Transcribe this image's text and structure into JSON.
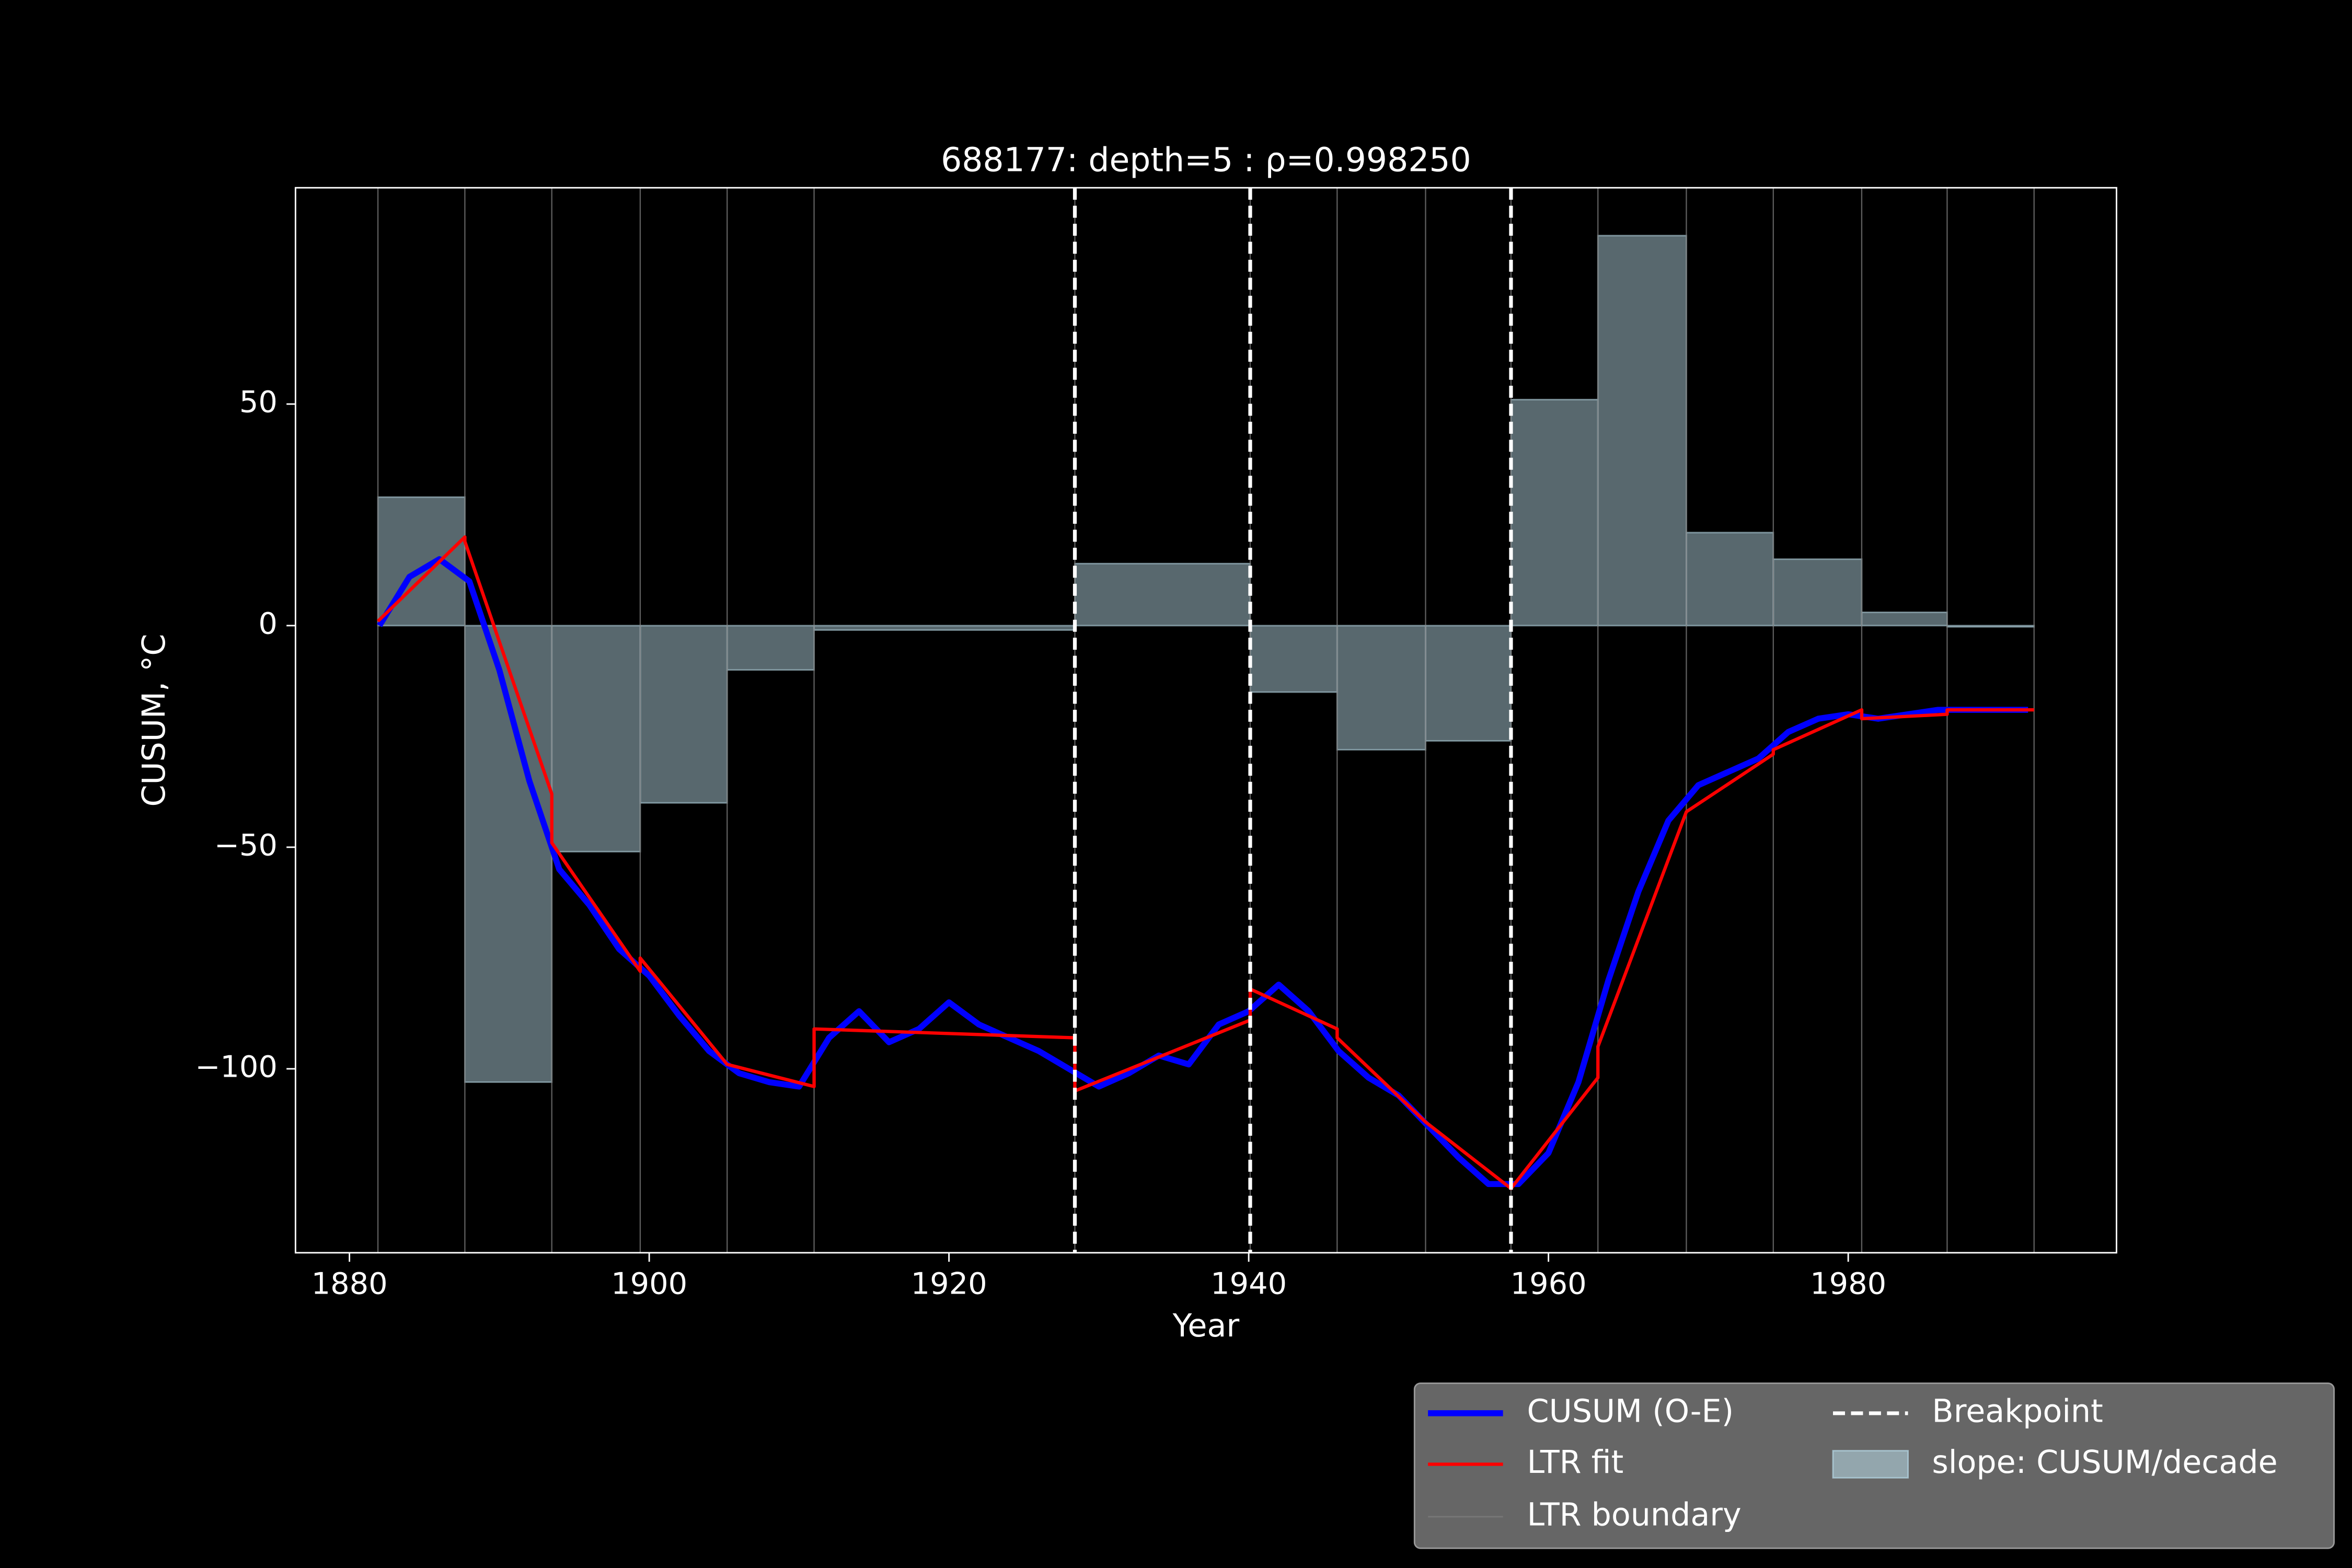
{
  "chart_data": {
    "type": "line",
    "title": "688177: depth=5 : ρ=0.998250",
    "x_label": "Year",
    "y_label": "CUSUM, °C",
    "xlim": [
      1876.4,
      1997.9
    ],
    "ylim": [
      -141.5,
      98.8
    ],
    "xticks": [
      1880,
      1900,
      1920,
      1940,
      1960,
      1980
    ],
    "yticks": [
      {
        "value": -100,
        "label": "−100"
      },
      {
        "value": -50,
        "label": "−50"
      },
      0,
      50
    ],
    "legend": "lower right",
    "series": [
      {
        "name": "CUSUM (O-E)",
        "color": "#0000ff",
        "x": [
          1882,
          1884,
          1886,
          1888,
          1890,
          1892,
          1894,
          1896,
          1898,
          1900,
          1902,
          1904,
          1906,
          1908,
          1910,
          1912,
          1914,
          1916,
          1918,
          1920,
          1922,
          1924,
          1926,
          1928,
          1930,
          1932,
          1934,
          1936,
          1938,
          1940,
          1942,
          1944,
          1946,
          1948,
          1950,
          1952,
          1954,
          1956,
          1958,
          1960,
          1962,
          1964,
          1966,
          1968,
          1970,
          1972,
          1974,
          1976,
          1978,
          1980,
          1982,
          1984,
          1986,
          1988,
          1990,
          1992
        ],
        "values": [
          0,
          11,
          15,
          10,
          -10,
          -35,
          -55,
          -63,
          -73,
          -79,
          -88,
          -96,
          -101,
          -103,
          -104,
          -93,
          -87,
          -94,
          -91,
          -85,
          -90,
          -93,
          -96,
          -100,
          -104,
          -101,
          -97,
          -99,
          -90,
          -87,
          -81,
          -87,
          -96,
          -102,
          -106,
          -113,
          -120,
          -126,
          -126,
          -119,
          -103,
          -80,
          -60,
          -44,
          -36,
          -33,
          -30,
          -24,
          -21,
          -20,
          -21,
          -20,
          -19,
          -19,
          -19,
          -19
        ]
      },
      {
        "name": "LTR fit",
        "color": "#ff0000",
        "x": [
          1881.9,
          1887.7,
          1887.7,
          1893.5,
          1893.5,
          1899.4,
          1899.4,
          1905.2,
          1911.0,
          1911.0,
          1928.4,
          1928.4,
          1940.1,
          1940.1,
          1945.9,
          1945.9,
          1951.8,
          1957.5,
          1963.3,
          1963.3,
          1969.2,
          1975.0,
          1975.0,
          1980.9,
          1980.9,
          1986.6,
          1986.6,
          1992.4
        ],
        "values": [
          1,
          20,
          19,
          -38,
          -49,
          -78,
          -75,
          -99,
          -104,
          -91,
          -93,
          -105,
          -89,
          -82,
          -91,
          -93,
          -112,
          -127,
          -102,
          -95,
          -42,
          -29,
          -28,
          -19,
          -21,
          -20,
          -19,
          -19
        ]
      }
    ],
    "slope": {
      "name": "slope: CUSUM/decade",
      "color": "#b0d0dc",
      "bins": [
        1881.9,
        1887.7,
        1893.5,
        1899.4,
        1905.2,
        1911.0,
        1928.4,
        1940.1,
        1945.9,
        1951.8,
        1957.5,
        1963.3,
        1969.2,
        1975.0,
        1980.9,
        1986.6,
        1992.4
      ],
      "values": [
        29,
        -103,
        -51,
        -40,
        -10,
        -1,
        14,
        -15,
        -28,
        -26,
        51,
        88,
        21,
        15,
        3,
        0
      ]
    },
    "ltr_boundary": {
      "name": "LTR boundary",
      "color": "#777777"
    },
    "breakpoints": {
      "name": "Breakpoint",
      "color": "#ffffff",
      "x": [
        1928.4,
        1940.1,
        1957.5
      ]
    }
  }
}
